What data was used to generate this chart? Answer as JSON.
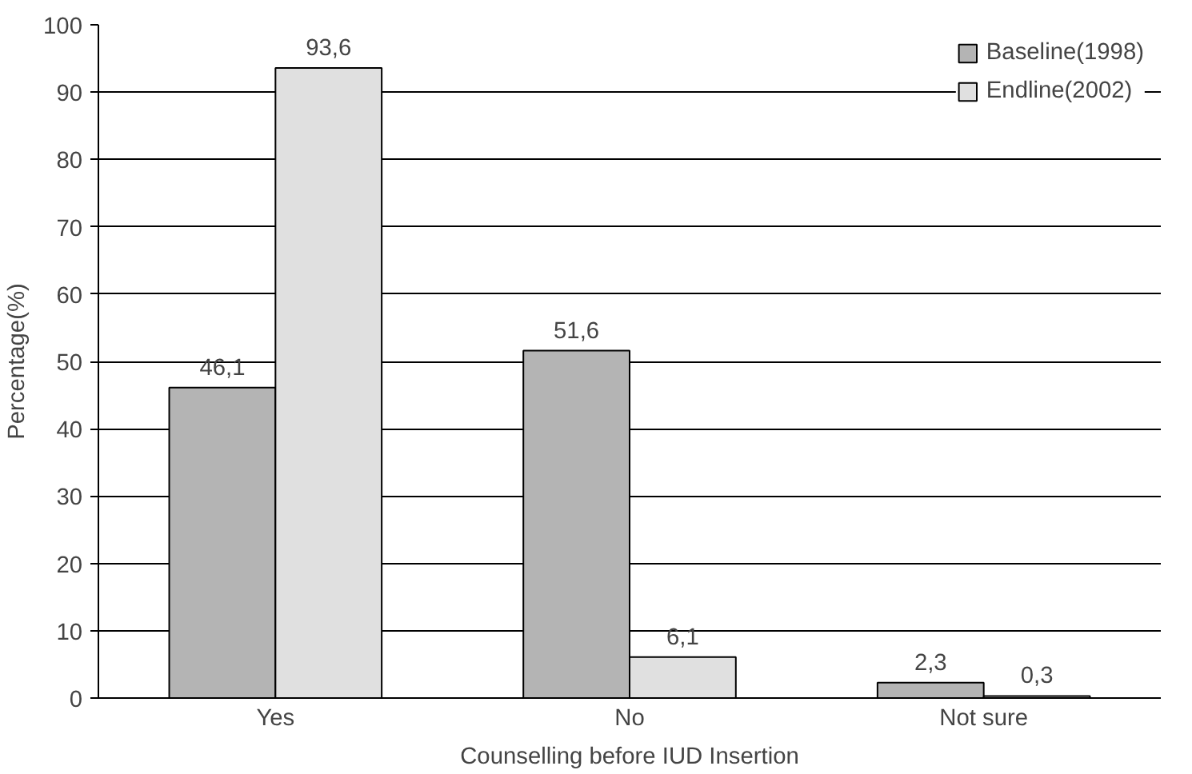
{
  "chart_data": {
    "type": "bar",
    "xlabel": "Counselling before IUD Insertion",
    "ylabel": "Percentage(%)",
    "categories": [
      "Yes",
      "No",
      "Not sure"
    ],
    "series": [
      {
        "name": "Baseline(1998)",
        "color": "#b4b4b4",
        "values": [
          46.1,
          51.6,
          2.3
        ],
        "value_labels": [
          "46,1",
          "51,6",
          "2,3"
        ]
      },
      {
        "name": "Endline(2002)",
        "color": "#e0e0e0",
        "values": [
          93.6,
          6.1,
          0.3
        ],
        "value_labels": [
          "93,6",
          "6,1",
          "0,3"
        ]
      }
    ],
    "ylim": [
      0,
      100
    ],
    "yticks": [
      0,
      10,
      20,
      30,
      40,
      50,
      60,
      70,
      80,
      90,
      100
    ],
    "grid": "y",
    "legend": "top right"
  }
}
